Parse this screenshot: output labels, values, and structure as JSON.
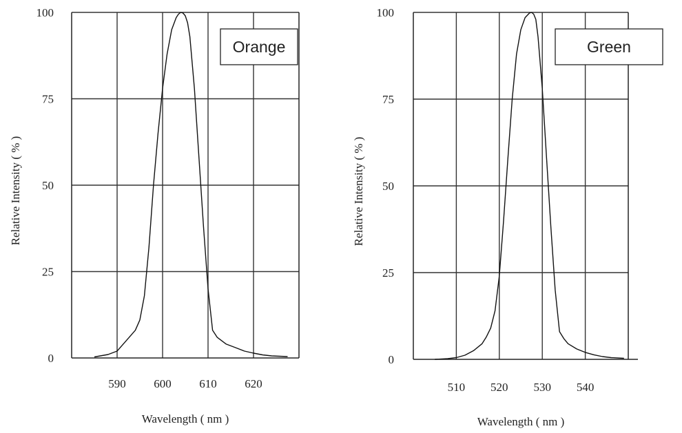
{
  "chart_data": [
    {
      "type": "line",
      "legend_label": "Orange",
      "legend_position": "top-right",
      "xlabel": "Wavelength ( nm )",
      "ylabel": "Relative Intensity ( % )",
      "xlim": [
        580,
        630
      ],
      "ylim": [
        0,
        100
      ],
      "x_ticks": [
        "590",
        "600",
        "610",
        "620"
      ],
      "x_tick_values": [
        590,
        600,
        610,
        620
      ],
      "y_ticks": [
        "0",
        "25",
        "50",
        "75",
        "100"
      ],
      "y_tick_values": [
        0,
        25,
        50,
        75,
        100
      ],
      "grid": true,
      "series": [
        {
          "x": [
            585,
            588,
            590,
            592,
            594,
            595,
            596,
            597,
            598,
            599,
            600,
            601,
            602,
            603,
            603.5,
            604,
            604.5,
            605,
            605.5,
            606,
            607,
            608,
            609,
            610,
            611,
            612,
            614,
            616,
            618,
            620,
            622,
            624,
            627.5
          ],
          "y": [
            0.3,
            1,
            2,
            5,
            8,
            11,
            18,
            32,
            50,
            65,
            78,
            88,
            95,
            98.5,
            99.5,
            100,
            99.8,
            99,
            97,
            93,
            78,
            58,
            38,
            20,
            8,
            6,
            4,
            3,
            2,
            1.4,
            0.9,
            0.6,
            0.4
          ]
        }
      ]
    },
    {
      "type": "line",
      "legend_label": "Green",
      "legend_position": "top-right",
      "xlabel": "Wavelength ( nm )",
      "ylabel": "Relative Intensity ( % )",
      "xlim": [
        500,
        550
      ],
      "ylim": [
        0,
        100
      ],
      "x_ticks": [
        "510",
        "520",
        "530",
        "540"
      ],
      "x_tick_values": [
        510,
        520,
        530,
        540
      ],
      "y_ticks": [
        "0",
        "25",
        "50",
        "75",
        "100"
      ],
      "y_tick_values": [
        0,
        25,
        50,
        75,
        100
      ],
      "grid": true,
      "series": [
        {
          "x": [
            505,
            508,
            510,
            512,
            514,
            516,
            517,
            518,
            519,
            520,
            521,
            522,
            523,
            524,
            525,
            526,
            527,
            527.5,
            528,
            528.5,
            529,
            530,
            531,
            532,
            533,
            534,
            535,
            536,
            538,
            540,
            542,
            544,
            546,
            549
          ],
          "y": [
            0,
            0.2,
            0.5,
            1.2,
            2.5,
            4.5,
            6.5,
            9,
            14,
            24,
            40,
            58,
            75,
            88,
            95,
            98.5,
            99.8,
            100,
            99.5,
            98,
            93,
            78,
            58,
            38,
            20,
            8,
            6,
            4.5,
            3,
            2,
            1.3,
            0.8,
            0.5,
            0.3
          ]
        }
      ]
    }
  ]
}
